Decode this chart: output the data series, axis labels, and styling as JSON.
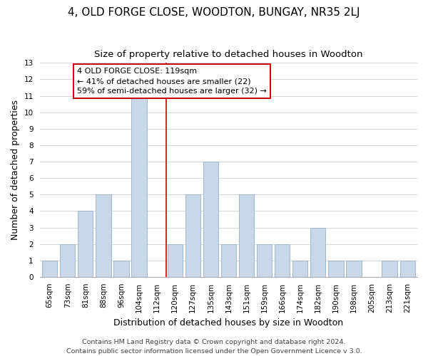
{
  "title": "4, OLD FORGE CLOSE, WOODTON, BUNGAY, NR35 2LJ",
  "subtitle": "Size of property relative to detached houses in Woodton",
  "xlabel": "Distribution of detached houses by size in Woodton",
  "ylabel": "Number of detached properties",
  "bin_labels": [
    "65sqm",
    "73sqm",
    "81sqm",
    "88sqm",
    "96sqm",
    "104sqm",
    "112sqm",
    "120sqm",
    "127sqm",
    "135sqm",
    "143sqm",
    "151sqm",
    "159sqm",
    "166sqm",
    "174sqm",
    "182sqm",
    "190sqm",
    "198sqm",
    "205sqm",
    "213sqm",
    "221sqm"
  ],
  "bar_heights": [
    1,
    2,
    4,
    5,
    1,
    11,
    0,
    2,
    5,
    7,
    2,
    5,
    2,
    2,
    1,
    3,
    1,
    1,
    0,
    1,
    1
  ],
  "redline_x": 6.5,
  "bar_color": "#c8d8e8",
  "bar_edge_color": "#a0b8cc",
  "highlight_line_color": "#cc0000",
  "annotation_text": "4 OLD FORGE CLOSE: 119sqm\n← 41% of detached houses are smaller (22)\n59% of semi-detached houses are larger (32) →",
  "annotation_box_edge_color": "#cc0000",
  "footer_line1": "Contains HM Land Registry data © Crown copyright and database right 2024.",
  "footer_line2": "Contains public sector information licensed under the Open Government Licence v 3.0.",
  "ylim": [
    0,
    13
  ],
  "yticks": [
    0,
    1,
    2,
    3,
    4,
    5,
    6,
    7,
    8,
    9,
    10,
    11,
    12,
    13
  ],
  "title_fontsize": 11,
  "subtitle_fontsize": 9.5,
  "axis_label_fontsize": 9,
  "tick_fontsize": 7.5,
  "footer_fontsize": 6.8,
  "annotation_fontsize": 8,
  "background_color": "#ffffff",
  "grid_color": "#d0d8e0"
}
